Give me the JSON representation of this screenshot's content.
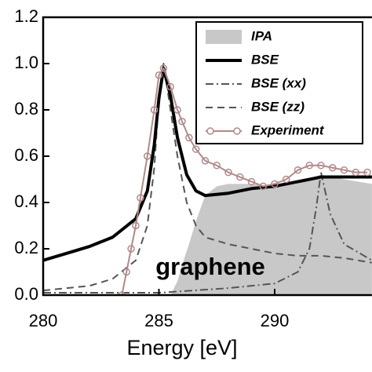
{
  "chart_data": {
    "type": "line",
    "x_label": "Energy [eV]",
    "annotation": "graphene",
    "xlim": [
      280,
      294.2
    ],
    "xticks": [
      280,
      285,
      290
    ],
    "ylim": [
      0,
      1.2
    ],
    "yticks": [
      {
        "value": 0,
        "label": "0.0"
      },
      0.2,
      0.4,
      0.6,
      0.8,
      {
        "value": 1,
        "label": "1.0"
      },
      1.2
    ],
    "series": [
      {
        "name": "IPA",
        "style": "area",
        "color": "#c8c8c8",
        "x": [
          285.5,
          285.8,
          286,
          286.3,
          286.6,
          287,
          287.5,
          288,
          289,
          290,
          291,
          292,
          293,
          294.2
        ],
        "values": [
          0,
          0.06,
          0.13,
          0.22,
          0.32,
          0.43,
          0.47,
          0.48,
          0.48,
          0.47,
          0.49,
          0.52,
          0.5,
          0.48
        ]
      },
      {
        "name": "BSE",
        "style": "solid",
        "color": "#000000",
        "x": [
          280,
          281,
          282,
          283,
          284,
          284.5,
          284.8,
          285,
          285.2,
          285.5,
          285.8,
          286.2,
          286.6,
          287,
          288,
          289,
          290,
          291,
          292,
          293,
          294.2
        ],
        "values": [
          0.15,
          0.18,
          0.21,
          0.25,
          0.33,
          0.45,
          0.65,
          0.85,
          0.98,
          0.86,
          0.68,
          0.52,
          0.45,
          0.43,
          0.44,
          0.46,
          0.47,
          0.49,
          0.51,
          0.51,
          0.51
        ]
      },
      {
        "name": "BSE (xx)",
        "style": "dashdot",
        "color": "#555555",
        "x": [
          280,
          285,
          288,
          290,
          291,
          291.5,
          291.8,
          292,
          292.4,
          293,
          294.2
        ],
        "values": [
          0.01,
          0.01,
          0.03,
          0.05,
          0.1,
          0.2,
          0.38,
          0.53,
          0.35,
          0.22,
          0.15
        ]
      },
      {
        "name": "BSE (zz)",
        "style": "dash",
        "color": "#555555",
        "x": [
          280,
          282,
          283,
          284,
          284.5,
          284.8,
          285,
          285.2,
          285.5,
          285.8,
          286.2,
          286.6,
          287,
          288,
          289,
          290,
          291,
          292,
          293,
          294.2
        ],
        "values": [
          0.02,
          0.04,
          0.07,
          0.15,
          0.3,
          0.55,
          0.85,
          1.0,
          0.8,
          0.6,
          0.4,
          0.3,
          0.25,
          0.22,
          0.2,
          0.18,
          0.17,
          0.17,
          0.16,
          0.14
        ]
      },
      {
        "name": "Experiment",
        "style": "marker-line",
        "color": "#b08a8a",
        "x": [
          283.4,
          283.6,
          283.8,
          284,
          284.2,
          284.5,
          284.8,
          285,
          285.2,
          285.5,
          285.8,
          286,
          286.3,
          286.6,
          287,
          287.5,
          288,
          288.5,
          289,
          289.5,
          290,
          290.5,
          291,
          291.5,
          292,
          292.5,
          293,
          293.5,
          294
        ],
        "values": [
          0,
          0.1,
          0.2,
          0.3,
          0.42,
          0.6,
          0.8,
          0.95,
          0.98,
          0.9,
          0.8,
          0.75,
          0.68,
          0.63,
          0.58,
          0.56,
          0.53,
          0.51,
          0.49,
          0.47,
          0.48,
          0.5,
          0.54,
          0.56,
          0.56,
          0.55,
          0.54,
          0.53,
          0.53
        ]
      }
    ]
  }
}
